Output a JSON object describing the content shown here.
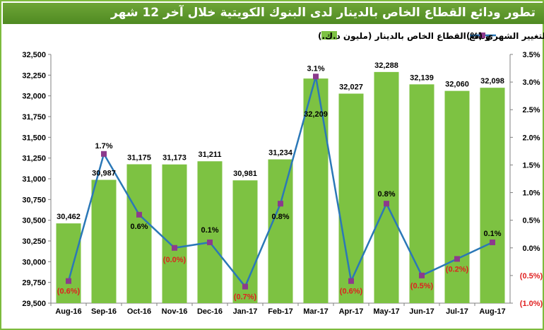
{
  "title": "تطور ودائع القطاع الخاص بالدينار لدى البنوك الكويتية خلال آخر 12 شهر",
  "colors": {
    "bar": "#7dc242",
    "line": "#2b78b7",
    "marker": "#8c3a8c",
    "negative_label": "#e02020",
    "title_bg": "#5a9a2a"
  },
  "chart_data": {
    "type": "bar+line",
    "categories": [
      "Aug-16",
      "Sep-16",
      "Oct-16",
      "Nov-16",
      "Dec-16",
      "Jan-17",
      "Feb-17",
      "Mar-17",
      "Apr-17",
      "May-17",
      "Jun-17",
      "Jul-17",
      "Aug-17"
    ],
    "series": [
      {
        "name": "ودائع القطاع الخاص بالدينار (مليون د.ك.)",
        "type": "bar",
        "axis": "left",
        "values": [
          30462,
          30987,
          31175,
          31173,
          31211,
          30981,
          31234,
          32209,
          32027,
          32288,
          32139,
          32060,
          32098
        ],
        "labels": [
          "30,462",
          "30,987",
          "31,175",
          "31,173",
          "31,211",
          "30,981",
          "31,234",
          "32,209",
          "32,027",
          "32,288",
          "32,139",
          "32,060",
          "32,098"
        ]
      },
      {
        "name": "نسبة التغيير الشهري (%)",
        "type": "line",
        "axis": "right",
        "values": [
          -0.6,
          1.7,
          0.6,
          0.0,
          0.1,
          -0.7,
          0.8,
          3.1,
          -0.6,
          0.8,
          -0.5,
          -0.2,
          0.1
        ],
        "labels": [
          "(0.6%)",
          "1.7%",
          "0.6%",
          "(0.0%)",
          "0.1%",
          "(0.7%)",
          "0.8%",
          "3.1%",
          "(0.6%)",
          "0.8%",
          "(0.5%)",
          "(0.2%)",
          "0.1%"
        ]
      }
    ],
    "y_left": {
      "range": [
        29500,
        32500
      ],
      "ticks": [
        "29,500",
        "29,750",
        "30,000",
        "30,250",
        "30,500",
        "30,750",
        "31,000",
        "31,250",
        "31,500",
        "31,750",
        "32,000",
        "32,250",
        "32,500"
      ]
    },
    "y_right": {
      "range": [
        -1.0,
        3.5
      ],
      "ticks": [
        "(1.0%)",
        "(0.5%)",
        "0.0%",
        "0.5%",
        "1.0%",
        "1.5%",
        "2.0%",
        "2.5%",
        "3.0%",
        "3.5%"
      ]
    },
    "legend_position": "top",
    "grid": false
  }
}
